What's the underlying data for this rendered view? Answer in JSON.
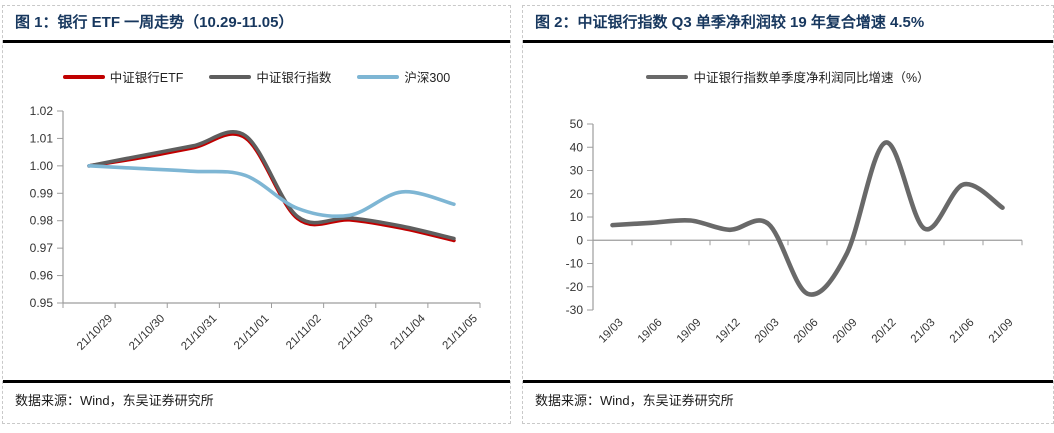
{
  "page": {
    "background": "#ffffff"
  },
  "colors": {
    "title_navy": "#17375E",
    "etf_red": "#C00000",
    "index_gray": "#5E5E5E",
    "hs300_blue": "#7EB6D4",
    "axis_gray": "#9d9d9d",
    "tick_text": "#333333",
    "rule_black": "#000000",
    "panel_border": "#c9c9c9"
  },
  "panels": {
    "left": {
      "title": "图 1：银行 ETF 一周走势（10.29-11.05）",
      "source": "数据来源：Wind，东吴证券研究所"
    },
    "right": {
      "title": "图 2：中证银行指数 Q3 单季净利润较 19 年复合增速 4.5%",
      "source": "数据来源：Wind，东吴证券研究所"
    }
  },
  "chart_data": [
    {
      "type": "line",
      "title": "银行 ETF 一周走势（10.29-11.05）",
      "categories": [
        "21/10/29",
        "21/10/30",
        "21/10/31",
        "21/11/01",
        "21/11/02",
        "21/11/03",
        "21/11/04",
        "21/11/05"
      ],
      "series": [
        {
          "name": "中证银行ETF",
          "color": "#C00000",
          "values": [
            1.0,
            1.003,
            1.0066,
            1.0102,
            0.9808,
            0.9803,
            0.9773,
            0.9728
          ]
        },
        {
          "name": "中证银行指数",
          "color": "#5E5E5E",
          "values": [
            1.0,
            1.0037,
            1.0073,
            1.011,
            0.9815,
            0.981,
            0.978,
            0.9735
          ]
        },
        {
          "name": "沪深300",
          "color": "#7EB6D4",
          "values": [
            1.0,
            0.999,
            0.998,
            0.9965,
            0.9845,
            0.982,
            0.9905,
            0.986
          ]
        }
      ],
      "ylim": [
        0.95,
        1.02
      ],
      "ytick_step": 0.01,
      "yticks": [
        "1.02",
        "1.01",
        "1.00",
        "0.99",
        "0.98",
        "0.97",
        "0.96",
        "0.95"
      ],
      "xlabel": "",
      "ylabel": "",
      "legend_position": "top",
      "grid": false,
      "smooth": true
    },
    {
      "type": "line",
      "title": "中证银行指数 Q3 单季净利润较 19 年复合增速 4.5%",
      "categories": [
        "19/03",
        "19/06",
        "19/09",
        "19/12",
        "20/03",
        "20/06",
        "20/09",
        "20/12",
        "21/03",
        "21/06",
        "21/09"
      ],
      "series": [
        {
          "name": "中证银行指数单季度净利润同比增速（%）",
          "color": "#696969",
          "values": [
            6.5,
            7.5,
            8.5,
            4.5,
            7,
            -23,
            -6,
            42,
            5,
            24,
            14
          ]
        }
      ],
      "ylim": [
        -30,
        50
      ],
      "ytick_step": 10,
      "yticks": [
        "50",
        "40",
        "30",
        "20",
        "10",
        "0",
        "-10",
        "-20",
        "-30"
      ],
      "xlabel": "",
      "ylabel": "",
      "legend_position": "top",
      "grid": false,
      "zero_axis": true,
      "smooth": true
    }
  ]
}
